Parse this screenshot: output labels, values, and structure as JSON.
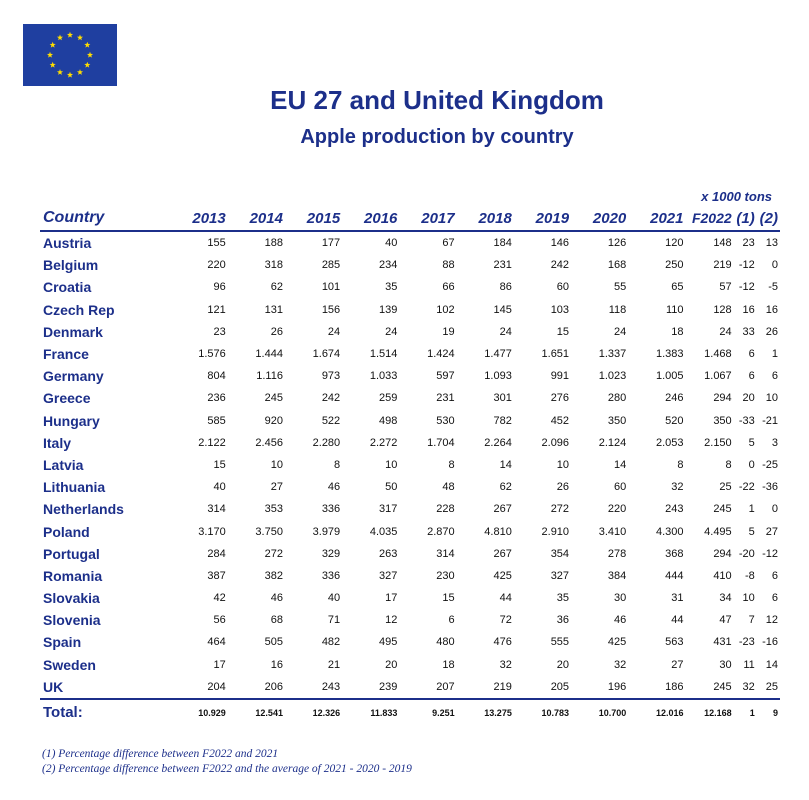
{
  "header": {
    "title": "EU 27 and United Kingdom",
    "subtitle": "Apple production by country",
    "units": "x 1000 tons"
  },
  "colors": {
    "brand_blue": "#1c2f8a",
    "flag_blue": "#1f3fa0",
    "flag_star": "#ffdd00"
  },
  "table": {
    "columns": [
      "Country",
      "2013",
      "2014",
      "2015",
      "2016",
      "2017",
      "2018",
      "2019",
      "2020",
      "2021",
      "F2022",
      "(1)",
      "(2)"
    ],
    "rows": [
      [
        "Austria",
        "155",
        "188",
        "177",
        "40",
        "67",
        "184",
        "146",
        "126",
        "120",
        "148",
        "23",
        "13"
      ],
      [
        "Belgium",
        "220",
        "318",
        "285",
        "234",
        "88",
        "231",
        "242",
        "168",
        "250",
        "219",
        "-12",
        "0"
      ],
      [
        "Croatia",
        "96",
        "62",
        "101",
        "35",
        "66",
        "86",
        "60",
        "55",
        "65",
        "57",
        "-12",
        "-5"
      ],
      [
        "Czech Rep",
        "121",
        "131",
        "156",
        "139",
        "102",
        "145",
        "103",
        "118",
        "110",
        "128",
        "16",
        "16"
      ],
      [
        "Denmark",
        "23",
        "26",
        "24",
        "24",
        "19",
        "24",
        "15",
        "24",
        "18",
        "24",
        "33",
        "26"
      ],
      [
        "France",
        "1.576",
        "1.444",
        "1.674",
        "1.514",
        "1.424",
        "1.477",
        "1.651",
        "1.337",
        "1.383",
        "1.468",
        "6",
        "1"
      ],
      [
        "Germany",
        "804",
        "1.116",
        "973",
        "1.033",
        "597",
        "1.093",
        "991",
        "1.023",
        "1.005",
        "1.067",
        "6",
        "6"
      ],
      [
        "Greece",
        "236",
        "245",
        "242",
        "259",
        "231",
        "301",
        "276",
        "280",
        "246",
        "294",
        "20",
        "10"
      ],
      [
        "Hungary",
        "585",
        "920",
        "522",
        "498",
        "530",
        "782",
        "452",
        "350",
        "520",
        "350",
        "-33",
        "-21"
      ],
      [
        "Italy",
        "2.122",
        "2.456",
        "2.280",
        "2.272",
        "1.704",
        "2.264",
        "2.096",
        "2.124",
        "2.053",
        "2.150",
        "5",
        "3"
      ],
      [
        "Latvia",
        "15",
        "10",
        "8",
        "10",
        "8",
        "14",
        "10",
        "14",
        "8",
        "8",
        "0",
        "-25"
      ],
      [
        "Lithuania",
        "40",
        "27",
        "46",
        "50",
        "48",
        "62",
        "26",
        "60",
        "32",
        "25",
        "-22",
        "-36"
      ],
      [
        "Netherlands",
        "314",
        "353",
        "336",
        "317",
        "228",
        "267",
        "272",
        "220",
        "243",
        "245",
        "1",
        "0"
      ],
      [
        "Poland",
        "3.170",
        "3.750",
        "3.979",
        "4.035",
        "2.870",
        "4.810",
        "2.910",
        "3.410",
        "4.300",
        "4.495",
        "5",
        "27"
      ],
      [
        "Portugal",
        "284",
        "272",
        "329",
        "263",
        "314",
        "267",
        "354",
        "278",
        "368",
        "294",
        "-20",
        "-12"
      ],
      [
        "Romania",
        "387",
        "382",
        "336",
        "327",
        "230",
        "425",
        "327",
        "384",
        "444",
        "410",
        "-8",
        "6"
      ],
      [
        "Slovakia",
        "42",
        "46",
        "40",
        "17",
        "15",
        "44",
        "35",
        "30",
        "31",
        "34",
        "10",
        "6"
      ],
      [
        "Slovenia",
        "56",
        "68",
        "71",
        "12",
        "6",
        "72",
        "36",
        "46",
        "44",
        "47",
        "7",
        "12"
      ],
      [
        "Spain",
        "464",
        "505",
        "482",
        "495",
        "480",
        "476",
        "555",
        "425",
        "563",
        "431",
        "-23",
        "-16"
      ],
      [
        "Sweden",
        "17",
        "16",
        "21",
        "20",
        "18",
        "32",
        "20",
        "32",
        "27",
        "30",
        "11",
        "14"
      ],
      [
        "UK",
        "204",
        "206",
        "243",
        "239",
        "207",
        "219",
        "205",
        "196",
        "186",
        "245",
        "32",
        "25"
      ]
    ],
    "total": [
      "Total:",
      "10.929",
      "12.541",
      "12.326",
      "11.833",
      "9.251",
      "13.275",
      "10.783",
      "10.700",
      "12.016",
      "12.168",
      "1",
      "9"
    ]
  },
  "notes": [
    "(1) Percentage difference between F2022 and 2021",
    "(2) Percentage difference between F2022 and the average of 2021 - 2020 - 2019"
  ],
  "icons": {
    "flag": "eu-flag-icon"
  }
}
